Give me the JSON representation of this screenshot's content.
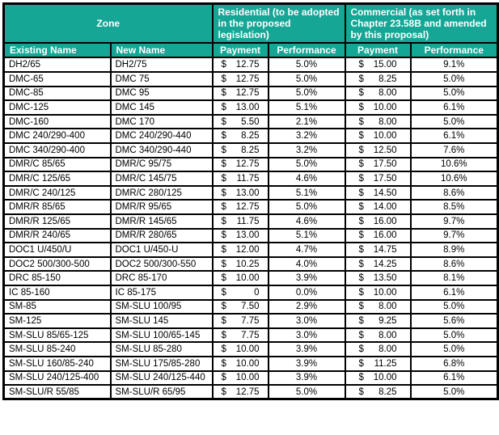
{
  "colors": {
    "header_teal": "#16A695",
    "grid_border": "#000000",
    "header_text": "#FFFFFF",
    "body_text": "#000000",
    "row_background": "#FFFFFF"
  },
  "currency_symbol": "$",
  "table": {
    "group_headers": {
      "zone": "Zone",
      "residential": "Residential (to be adopted in the proposed legislation)",
      "commercial": "Commercial (as set forth in Chapter 23.58B and amended by this proposal)"
    },
    "column_headers": {
      "existing_name": "Existing Name",
      "new_name": "New Name",
      "payment": "Payment",
      "performance": "Performance"
    },
    "rows": [
      {
        "existing": "DH2/65",
        "new": "DH2/75",
        "res_payment": "12.75",
        "res_performance": "5.0%",
        "com_payment": "15.00",
        "com_performance": "9.1%"
      },
      {
        "existing": "DMC-65",
        "new": "DMC 75",
        "res_payment": "12.75",
        "res_performance": "5.0%",
        "com_payment": "8.25",
        "com_performance": "5.0%"
      },
      {
        "existing": "DMC-85",
        "new": "DMC 95",
        "res_payment": "12.75",
        "res_performance": "5.0%",
        "com_payment": "8.00",
        "com_performance": "5.0%"
      },
      {
        "existing": "DMC-125",
        "new": "DMC 145",
        "res_payment": "13.00",
        "res_performance": "5.1%",
        "com_payment": "10.00",
        "com_performance": "6.1%"
      },
      {
        "existing": "DMC-160",
        "new": "DMC 170",
        "res_payment": "5.50",
        "res_performance": "2.1%",
        "com_payment": "8.00",
        "com_performance": "5.0%"
      },
      {
        "existing": "DMC 240/290-400",
        "new": "DMC 240/290-440",
        "res_payment": "8.25",
        "res_performance": "3.2%",
        "com_payment": "10.00",
        "com_performance": "6.1%"
      },
      {
        "existing": "DMC 340/290-400",
        "new": "DMC 340/290-440",
        "res_payment": "8.25",
        "res_performance": "3.2%",
        "com_payment": "12.50",
        "com_performance": "7.6%"
      },
      {
        "existing": "DMR/C 85/65",
        "new": "DMR/C 95/75",
        "res_payment": "12.75",
        "res_performance": "5.0%",
        "com_payment": "17.50",
        "com_performance": "10.6%"
      },
      {
        "existing": "DMR/C 125/65",
        "new": "DMR/C 145/75",
        "res_payment": "11.75",
        "res_performance": "4.6%",
        "com_payment": "17.50",
        "com_performance": "10.6%"
      },
      {
        "existing": "DMR/C 240/125",
        "new": "DMR/C 280/125",
        "res_payment": "13.00",
        "res_performance": "5.1%",
        "com_payment": "14.50",
        "com_performance": "8.6%"
      },
      {
        "existing": "DMR/R 85/65",
        "new": "DMR/R 95/65",
        "res_payment": "12.75",
        "res_performance": "5.0%",
        "com_payment": "14.00",
        "com_performance": "8.5%"
      },
      {
        "existing": "DMR/R 125/65",
        "new": "DMR/R 145/65",
        "res_payment": "11.75",
        "res_performance": "4.6%",
        "com_payment": "16.00",
        "com_performance": "9.7%"
      },
      {
        "existing": "DMR/R 240/65",
        "new": "DMR/R 280/65",
        "res_payment": "13.00",
        "res_performance": "5.1%",
        "com_payment": "16.00",
        "com_performance": "9.7%"
      },
      {
        "existing": "DOC1 U/450/U",
        "new": "DOC1 U/450-U",
        "res_payment": "12.00",
        "res_performance": "4.7%",
        "com_payment": "14.75",
        "com_performance": "8.9%"
      },
      {
        "existing": "DOC2 500/300-500",
        "new": "DOC2 500/300-550",
        "res_payment": "10.25",
        "res_performance": "4.0%",
        "com_payment": "14.25",
        "com_performance": "8.6%"
      },
      {
        "existing": "DRC 85-150",
        "new": "DRC 85-170",
        "res_payment": "10.00",
        "res_performance": "3.9%",
        "com_payment": "13.50",
        "com_performance": "8.1%"
      },
      {
        "existing": "IC 85-160",
        "new": "IC 85-175",
        "res_payment": "0",
        "res_performance": "0.0%",
        "com_payment": "10.00",
        "com_performance": "6.1%"
      },
      {
        "existing": "SM-85",
        "new": "SM-SLU 100/95",
        "res_payment": "7.50",
        "res_performance": "2.9%",
        "com_payment": "8.00",
        "com_performance": "5.0%"
      },
      {
        "existing": "SM-125",
        "new": "SM-SLU 145",
        "res_payment": "7.75",
        "res_performance": "3.0%",
        "com_payment": "9.25",
        "com_performance": "5.6%"
      },
      {
        "existing": "SM-SLU 85/65-125",
        "new": "SM-SLU 100/65-145",
        "res_payment": "7.75",
        "res_performance": "3.0%",
        "com_payment": "8.00",
        "com_performance": "5.0%"
      },
      {
        "existing": "SM-SLU 85-240",
        "new": "SM-SLU 85-280",
        "res_payment": "10.00",
        "res_performance": "3.9%",
        "com_payment": "8.00",
        "com_performance": "5.0%"
      },
      {
        "existing": "SM-SLU 160/85-240",
        "new": "SM-SLU 175/85-280",
        "res_payment": "10.00",
        "res_performance": "3.9%",
        "com_payment": "11.25",
        "com_performance": "6.8%"
      },
      {
        "existing": "SM-SLU 240/125-400",
        "new": "SM-SLU 240/125-440",
        "res_payment": "10.00",
        "res_performance": "3.9%",
        "com_payment": "10.00",
        "com_performance": "6.1%"
      },
      {
        "existing": "SM-SLU/R 55/85",
        "new": "SM-SLU/R 65/95",
        "res_payment": "12.75",
        "res_performance": "5.0%",
        "com_payment": "8.25",
        "com_performance": "5.0%"
      }
    ]
  }
}
